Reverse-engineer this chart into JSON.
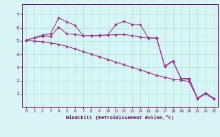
{
  "x_values": [
    0,
    1,
    2,
    3,
    4,
    5,
    6,
    7,
    8,
    9,
    10,
    11,
    12,
    13,
    14,
    15,
    16,
    17,
    18,
    19,
    20,
    21,
    22,
    23
  ],
  "line1": [
    5.05,
    5.25,
    5.35,
    5.35,
    6.05,
    5.55,
    5.5,
    5.4,
    5.4,
    5.4,
    5.45,
    6.25,
    6.5,
    6.25,
    6.25,
    5.2,
    5.2,
    3.1,
    3.5,
    2.15,
    2.1,
    0.6,
    1.0,
    0.6
  ],
  "line2": [
    5.05,
    5.25,
    5.45,
    5.55,
    6.75,
    6.45,
    6.2,
    5.4,
    5.42,
    5.44,
    5.46,
    5.48,
    5.5,
    5.4,
    5.3,
    5.25,
    5.25,
    3.05,
    3.45,
    2.15,
    2.15,
    0.65,
    1.05,
    0.65
  ],
  "line3": [
    5.05,
    5.0,
    4.95,
    4.85,
    4.75,
    4.6,
    4.4,
    4.2,
    4.0,
    3.8,
    3.6,
    3.4,
    3.2,
    3.0,
    2.8,
    2.6,
    2.4,
    2.25,
    2.1,
    2.05,
    1.9,
    0.65,
    1.05,
    0.65
  ],
  "line_color": "#993399",
  "marker": "D",
  "marker_size": 2.0,
  "linewidth": 0.8,
  "bg_color": "#d8f5f5",
  "grid_color": "#b0dede",
  "axis_color": "#660066",
  "tick_color": "#660066",
  "xlabel": "Windchill (Refroidissement éolien,°C)",
  "ylabel_ticks": [
    1,
    2,
    3,
    4,
    5,
    6,
    7
  ],
  "ylim": [
    0.0,
    7.8
  ],
  "xlim": [
    -0.5,
    23.5
  ],
  "figsize": [
    3.2,
    2.0
  ],
  "dpi": 100
}
